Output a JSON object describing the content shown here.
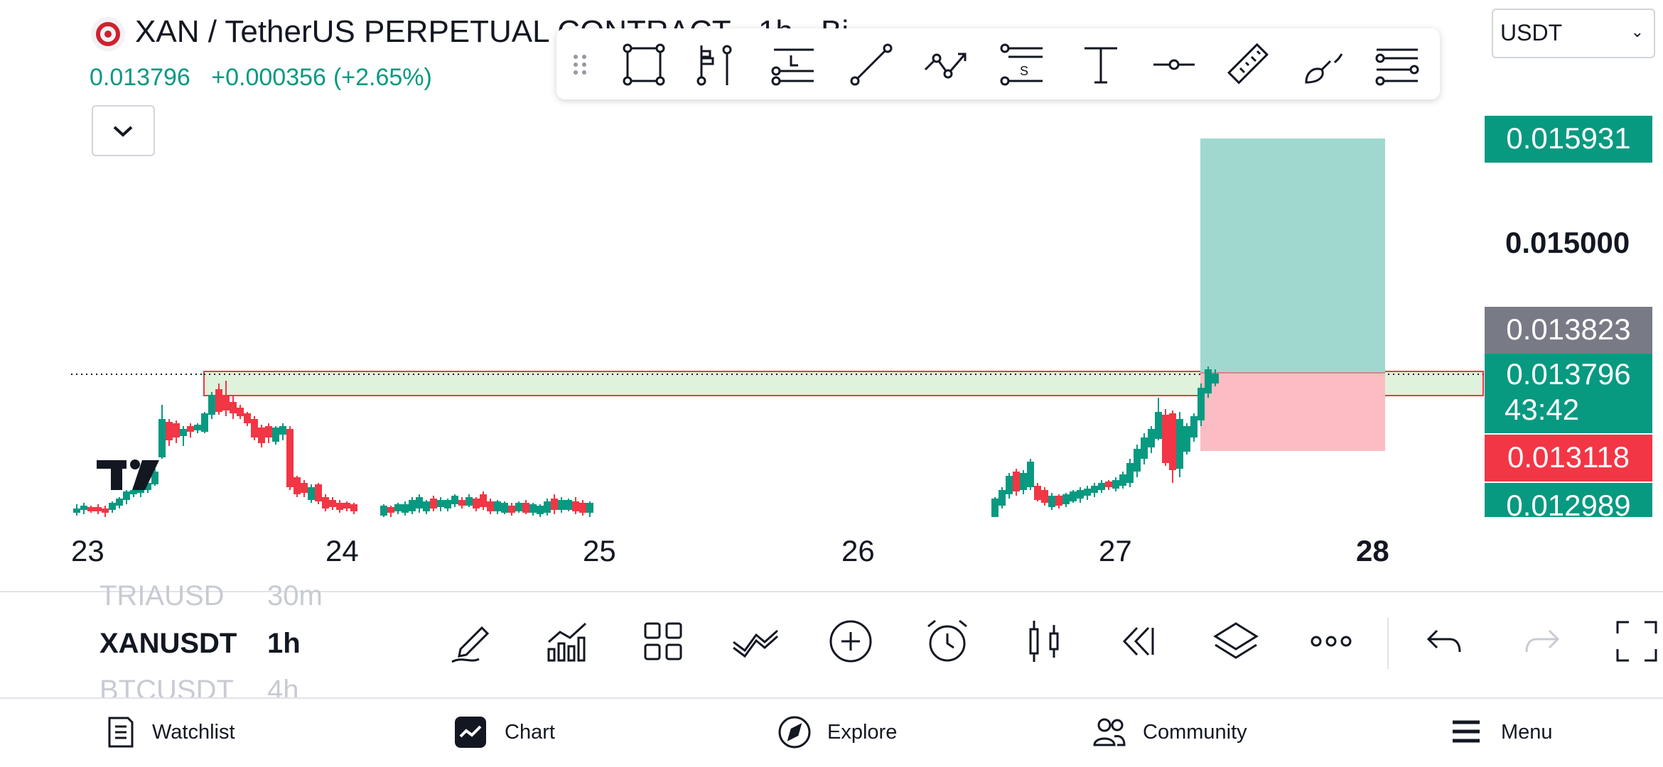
{
  "header": {
    "symbol_title": "XAN / TetherUS PERPETUAL CONTRACT · 1h · Bi",
    "last_price": "0.013796",
    "change_abs": "+0.000356",
    "change_pct": "(+2.65%)",
    "currency": "USDT"
  },
  "drawing_toolbar": {
    "tools": [
      "drag-handle-icon",
      "rectangle-icon",
      "anchored-vwap-icon",
      "horizontal-ray-icon",
      "trend-line-icon",
      "path-icon",
      "signal-line-icon",
      "text-icon",
      "horizontal-line-icon",
      "ruler-icon",
      "brush-icon",
      "parallel-lines-icon"
    ]
  },
  "chart": {
    "price_labels": {
      "target": "0.015931",
      "level_15000": "0.015000",
      "prev_close": "0.013823",
      "current": "0.013796",
      "countdown": "43:42",
      "stop": "0.013118",
      "low": "0.012989"
    },
    "time_labels": [
      "23",
      "24",
      "25",
      "26",
      "27",
      "28"
    ],
    "colors": {
      "up": "#089981",
      "down": "#f23645",
      "profit_zone": "#a0d8cf",
      "loss_zone": "#fcbcc3",
      "range_box": "#dff2dc"
    }
  },
  "watchlist": {
    "rows": [
      {
        "symbol": "TRIAUSD",
        "tf": "30m"
      },
      {
        "symbol": "XANUSDT",
        "tf": "1h"
      },
      {
        "symbol": "BTCUSDT",
        "tf": "4h"
      }
    ]
  },
  "chart_toolbar": {
    "tools": [
      "drawing-tools-icon",
      "indicators-icon",
      "templates-icon",
      "compare-icon",
      "add-icon",
      "alert-icon",
      "chart-type-icon",
      "replay-icon",
      "layers-icon",
      "more-icon",
      "undo-icon",
      "redo-icon",
      "fullscreen-icon"
    ]
  },
  "nav": {
    "watchlist": "Watchlist",
    "chart": "Chart",
    "explore": "Explore",
    "community": "Community",
    "menu": "Menu"
  }
}
